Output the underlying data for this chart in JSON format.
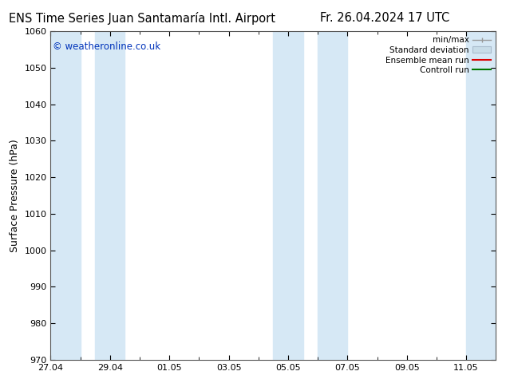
{
  "title_left": "ENS Time Series Juan Santamaría Intl. Airport",
  "title_right": "Fr. 26.04.2024 17 UTC",
  "ylabel": "Surface Pressure (hPa)",
  "ylim": [
    970,
    1060
  ],
  "yticks": [
    970,
    980,
    990,
    1000,
    1010,
    1020,
    1030,
    1040,
    1050,
    1060
  ],
  "xtick_labels": [
    "27.04",
    "29.04",
    "01.05",
    "03.05",
    "05.05",
    "07.05",
    "09.05",
    "11.05"
  ],
  "xtick_positions": [
    0,
    2,
    4,
    6,
    8,
    10,
    12,
    14
  ],
  "xlim": [
    0,
    15
  ],
  "shaded_bands": [
    {
      "start": 0.0,
      "end": 1.0
    },
    {
      "start": 1.5,
      "end": 2.5
    },
    {
      "start": 7.5,
      "end": 8.5
    },
    {
      "start": 9.0,
      "end": 10.0
    },
    {
      "start": 14.0,
      "end": 15.0
    }
  ],
  "band_color": "#d6e8f5",
  "background_color": "#ffffff",
  "plot_bg_color": "#ffffff",
  "copyright_text": "© weatheronline.co.uk",
  "copyright_color": "#0033bb",
  "copyright_fontsize": 8.5,
  "title_fontsize": 10.5,
  "legend_labels": [
    "min/max",
    "Standard deviation",
    "Ensemble mean run",
    "Controll run"
  ],
  "axis_label_fontsize": 9,
  "tick_fontsize": 8,
  "frame_color": "#555555",
  "minmax_color": "#999999",
  "stddev_color": "#c8dce8",
  "stddev_edge_color": "#aabbcc",
  "ensemble_color": "#dd0000",
  "control_color": "#007700"
}
